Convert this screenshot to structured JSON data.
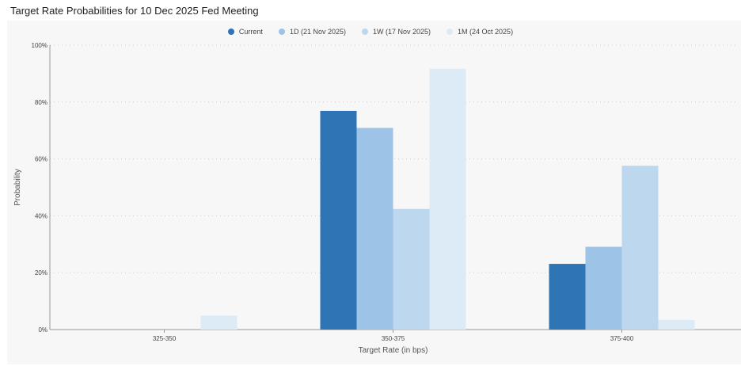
{
  "chart_data": {
    "type": "bar",
    "title": "Target Rate Probabilities for 10 Dec 2025 Fed Meeting",
    "xlabel": "Target Rate (in bps)",
    "ylabel": "Probability",
    "categories": [
      "325-350",
      "350-375",
      "375-400"
    ],
    "y_ticks": [
      "0%",
      "20%",
      "40%",
      "60%",
      "80%",
      "100%"
    ],
    "ylim": [
      0,
      100
    ],
    "grid": true,
    "legend_position": "top-center",
    "series": [
      {
        "name": "Current",
        "color": "#2e75b6",
        "values": [
          0,
          76.9,
          23.1
        ]
      },
      {
        "name": "1D (21 Nov 2025)",
        "color": "#9dc3e6",
        "values": [
          0,
          70.9,
          29.1
        ]
      },
      {
        "name": "1W (17 Nov 2025)",
        "color": "#bdd7ee",
        "values": [
          0,
          42.4,
          57.6
        ]
      },
      {
        "name": "1M (24 Oct 2025)",
        "color": "#ddebf7",
        "values": [
          4.9,
          91.7,
          3.4
        ]
      }
    ]
  }
}
